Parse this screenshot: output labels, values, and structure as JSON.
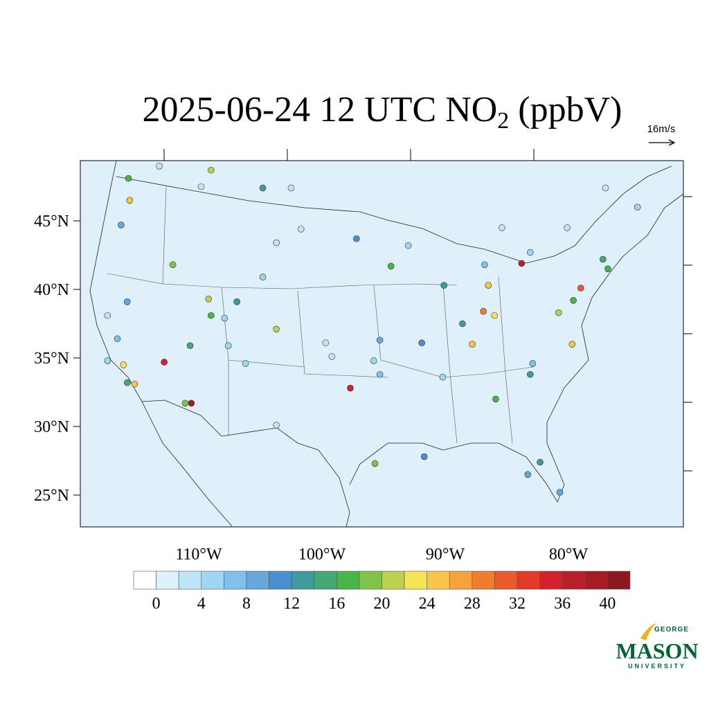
{
  "map": {
    "title": {
      "main": "2025-06-24 12 UTC NO",
      "sub": "2",
      "tail": " (ppbV)"
    },
    "vector_reference": "16m/s",
    "lat_ticks": [
      {
        "value": 45,
        "label": "45°N"
      },
      {
        "value": 40,
        "label": "40°N"
      },
      {
        "value": 35,
        "label": "35°N"
      },
      {
        "value": 30,
        "label": "30°N"
      },
      {
        "value": 25,
        "label": "25°N"
      }
    ],
    "lon_ticks": [
      {
        "value": -110,
        "label": "110°W"
      },
      {
        "value": -100,
        "label": "100°W"
      },
      {
        "value": -90,
        "label": "90°W"
      },
      {
        "value": -80,
        "label": "80°W"
      }
    ],
    "colorbar": {
      "levels": [
        0,
        2,
        4,
        6,
        8,
        10,
        12,
        14,
        16,
        18,
        20,
        22,
        24,
        26,
        28,
        30,
        32,
        34,
        36,
        38,
        40
      ],
      "ticks": [
        0,
        4,
        8,
        12,
        16,
        20,
        24,
        28,
        32,
        36,
        40
      ],
      "colors": [
        "#ffffff",
        "#dff1fb",
        "#bfe5f8",
        "#9fd7f3",
        "#7fc1ea",
        "#64a8dc",
        "#4c8fd0",
        "#3f9b9b",
        "#46a874",
        "#47b548",
        "#7fc34a",
        "#bdd052",
        "#f5e658",
        "#f8c54a",
        "#f7a23d",
        "#f27c2e",
        "#eb5a2a",
        "#e23b2a",
        "#d3212d",
        "#bb1f27",
        "#a51c22",
        "#8b1a1e"
      ]
    },
    "stations": [
      {
        "lon": -115.7,
        "lat": 48.1,
        "value": 16
      },
      {
        "lon": -115.6,
        "lat": 46.5,
        "value": 24
      },
      {
        "lon": -116.3,
        "lat": 44.7,
        "value": 8
      },
      {
        "lon": -112.1,
        "lat": 41.8,
        "value": 19
      },
      {
        "lon": -109.2,
        "lat": 39.3,
        "value": 20
      },
      {
        "lon": -109.0,
        "lat": 38.1,
        "value": 17
      },
      {
        "lon": -112.8,
        "lat": 34.7,
        "value": 34
      },
      {
        "lon": -116.1,
        "lat": 34.5,
        "value": 22
      },
      {
        "lon": -115.2,
        "lat": 33.1,
        "value": 25
      },
      {
        "lon": -115.8,
        "lat": 33.2,
        "value": 14
      },
      {
        "lon": -110.6,
        "lat": 31.7,
        "value": 38
      },
      {
        "lon": -111.1,
        "lat": 31.7,
        "value": 18
      },
      {
        "lon": -110.7,
        "lat": 35.9,
        "value": 14
      },
      {
        "lon": -103.7,
        "lat": 37.1,
        "value": 21
      },
      {
        "lon": -106.9,
        "lat": 39.1,
        "value": 13
      },
      {
        "lon": -109.0,
        "lat": 48.7,
        "value": 21
      },
      {
        "lon": -104.8,
        "lat": 47.4,
        "value": 12
      },
      {
        "lon": -97.2,
        "lat": 43.7,
        "value": 10
      },
      {
        "lon": -94.4,
        "lat": 41.7,
        "value": 17
      },
      {
        "lon": -97.7,
        "lat": 32.8,
        "value": 34
      },
      {
        "lon": -95.3,
        "lat": 36.3,
        "value": 9
      },
      {
        "lon": -95.7,
        "lat": 27.3,
        "value": 18
      },
      {
        "lon": -91.7,
        "lat": 27.8,
        "value": 10
      },
      {
        "lon": -86.5,
        "lat": 40.3,
        "value": 24
      },
      {
        "lon": -83.8,
        "lat": 41.9,
        "value": 36
      },
      {
        "lon": -86.9,
        "lat": 38.4,
        "value": 28
      },
      {
        "lon": -87.8,
        "lat": 36.0,
        "value": 25
      },
      {
        "lon": -86.0,
        "lat": 38.1,
        "value": 22
      },
      {
        "lon": -88.6,
        "lat": 37.5,
        "value": 13
      },
      {
        "lon": -90.1,
        "lat": 40.3,
        "value": 12
      },
      {
        "lon": -79.0,
        "lat": 40.1,
        "value": 30
      },
      {
        "lon": -79.6,
        "lat": 39.2,
        "value": 17
      },
      {
        "lon": -79.7,
        "lat": 36.0,
        "value": 24
      },
      {
        "lon": -80.8,
        "lat": 38.3,
        "value": 20
      },
      {
        "lon": -83.1,
        "lat": 33.8,
        "value": 13
      },
      {
        "lon": -85.9,
        "lat": 32.0,
        "value": 17
      },
      {
        "lon": -82.3,
        "lat": 27.4,
        "value": 13
      },
      {
        "lon": -80.7,
        "lat": 25.2,
        "value": 9
      },
      {
        "lon": -83.3,
        "lat": 26.5,
        "value": 9
      },
      {
        "lon": -77.2,
        "lat": 42.2,
        "value": 14
      },
      {
        "lon": -76.8,
        "lat": 41.5,
        "value": 17
      },
      {
        "lon": -115.8,
        "lat": 39.1,
        "value": 8
      },
      {
        "lon": -117.4,
        "lat": 38.1,
        "value": 3
      },
      {
        "lon": -113.2,
        "lat": 49.0,
        "value": 2
      },
      {
        "lon": -109.8,
        "lat": 47.5,
        "value": 3
      },
      {
        "lon": -102.5,
        "lat": 47.4,
        "value": 3
      },
      {
        "lon": -101.7,
        "lat": 44.4,
        "value": 2
      },
      {
        "lon": -103.7,
        "lat": 43.4,
        "value": 3
      },
      {
        "lon": -104.8,
        "lat": 40.9,
        "value": 4
      },
      {
        "lon": -106.2,
        "lat": 34.6,
        "value": 5
      },
      {
        "lon": -103.7,
        "lat": 30.1,
        "value": 3
      },
      {
        "lon": -99.7,
        "lat": 36.1,
        "value": 3
      },
      {
        "lon": -99.2,
        "lat": 35.1,
        "value": 2
      },
      {
        "lon": -95.8,
        "lat": 34.8,
        "value": 4
      },
      {
        "lon": -85.4,
        "lat": 44.5,
        "value": 3
      },
      {
        "lon": -80.1,
        "lat": 44.5,
        "value": 3
      },
      {
        "lon": -77.0,
        "lat": 47.4,
        "value": 3
      },
      {
        "lon": -74.4,
        "lat": 46.0,
        "value": 5
      },
      {
        "lon": -83.1,
        "lat": 42.7,
        "value": 4
      },
      {
        "lon": -86.8,
        "lat": 41.8,
        "value": 6
      },
      {
        "lon": -91.9,
        "lat": 36.1,
        "value": 10
      },
      {
        "lon": -95.3,
        "lat": 33.8,
        "value": 6
      },
      {
        "lon": -90.2,
        "lat": 33.6,
        "value": 5
      },
      {
        "lon": -82.9,
        "lat": 34.6,
        "value": 6
      },
      {
        "lon": -93.0,
        "lat": 43.2,
        "value": 4
      },
      {
        "lon": -116.6,
        "lat": 36.4,
        "value": 7
      },
      {
        "lon": -107.9,
        "lat": 37.9,
        "value": 5
      },
      {
        "lon": -107.6,
        "lat": 35.9,
        "value": 4
      },
      {
        "lon": -117.4,
        "lat": 34.8,
        "value": 4
      }
    ],
    "logo": {
      "top": "GEORGE",
      "main": "MASON",
      "bottom": "UNIVERSITY"
    }
  }
}
